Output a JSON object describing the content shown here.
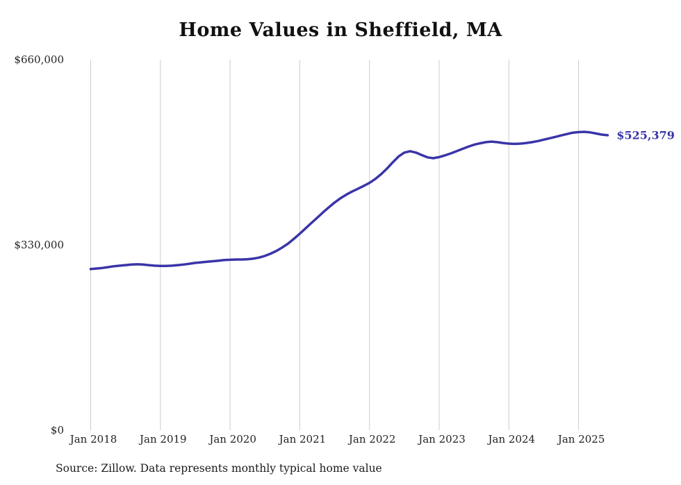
{
  "title": "Home Values in Sheffield, MA",
  "source_note": "Source: Zillow. Data represents monthly typical home value",
  "end_label": "$525,379",
  "colors": {
    "line": "#3a34a8",
    "grid": "#cccccc",
    "text": "#222222"
  },
  "chart_data": {
    "type": "line",
    "title": "Home Values in Sheffield, MA",
    "xlabel": "",
    "ylabel": "",
    "ylim": [
      0,
      660000
    ],
    "grid": "vertical-yearly",
    "legend": "none",
    "x_start": "2018-01",
    "x_frequency": "monthly",
    "x_tick_labels": [
      "Jan 2018",
      "Jan 2019",
      "Jan 2020",
      "Jan 2021",
      "Jan 2022",
      "Jan 2023",
      "Jan 2024",
      "Jan 2025"
    ],
    "y_ticks": [
      {
        "value": 0,
        "label": "$0"
      },
      {
        "value": 330000,
        "label": "$330,000"
      },
      {
        "value": 660000,
        "label": "$660,000"
      }
    ],
    "final_value": 525379,
    "final_value_label": "$525,379",
    "series": [
      {
        "name": "Monthly typical home value",
        "values": [
          287000,
          288000,
          289000,
          290500,
          292000,
          293000,
          294000,
          295000,
          295500,
          295000,
          294000,
          293000,
          292500,
          292500,
          293000,
          294000,
          295000,
          296500,
          298000,
          299000,
          300000,
          301000,
          302000,
          303000,
          303500,
          304000,
          304000,
          304500,
          305500,
          307500,
          310500,
          314500,
          319500,
          325500,
          332500,
          341000,
          350000,
          359500,
          369000,
          378500,
          388000,
          397000,
          405500,
          413000,
          419500,
          425000,
          430000,
          435000,
          440500,
          447500,
          456000,
          466000,
          477000,
          487500,
          494500,
          497000,
          494500,
          490000,
          486000,
          484500,
          486500,
          489500,
          493000,
          497000,
          501000,
          505000,
          508500,
          511000,
          513000,
          514000,
          513000,
          511500,
          510500,
          510000,
          510500,
          511500,
          513000,
          515000,
          517500,
          520000,
          522500,
          525000,
          527500,
          530000,
          531000,
          531500,
          530500,
          528500,
          526500,
          525379
        ]
      }
    ]
  }
}
